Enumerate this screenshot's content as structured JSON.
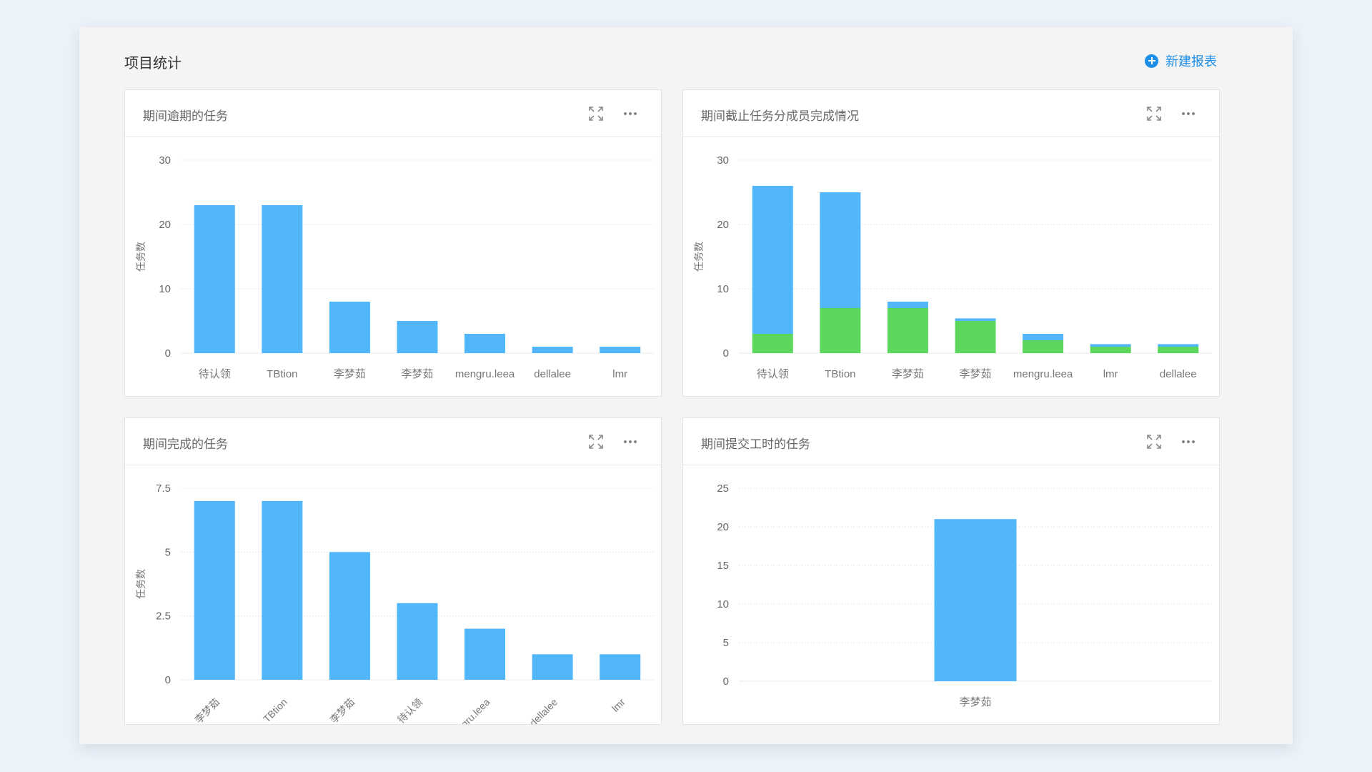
{
  "page": {
    "title": "项目统计",
    "new_report_label": "新建报表"
  },
  "cards": [
    {
      "title": "期间逾期的任务"
    },
    {
      "title": "期间截止任务分成员完成情况"
    },
    {
      "title": "期间完成的任务"
    },
    {
      "title": "期间提交工时的任务"
    }
  ],
  "colors": {
    "bar_blue": "#52b6fa",
    "bar_green": "#5cd65c",
    "accent": "#1b8ee8"
  },
  "chart_data": [
    {
      "type": "bar",
      "title": "期间逾期的任务",
      "ylabel": "任务数",
      "xlabel": "",
      "categories": [
        "待认领",
        "TBtion",
        "李梦茹",
        "李梦茹",
        "mengru.leea",
        "dellalee",
        "lmr"
      ],
      "values": [
        23,
        23,
        8,
        5,
        3,
        1,
        1
      ],
      "yticks": [
        "0",
        "10",
        "20",
        "30"
      ],
      "ylim": [
        0,
        30
      ],
      "grid": true,
      "label_rotation": 0
    },
    {
      "type": "bar",
      "stacked": true,
      "title": "期间截止任务分成员完成情况",
      "ylabel": "任务数",
      "xlabel": "",
      "categories": [
        "待认领",
        "TBtion",
        "李梦茹",
        "李梦茹",
        "mengru.leea",
        "lmr",
        "dellalee"
      ],
      "series": [
        {
          "values": [
            3,
            7,
            7,
            5,
            2,
            1,
            1
          ],
          "color": "#5cd65c"
        },
        {
          "values": [
            23,
            18,
            1,
            0.4,
            1,
            0.4,
            0.4
          ],
          "color": "#52b6fa"
        }
      ],
      "yticks": [
        "0",
        "10",
        "20",
        "30"
      ],
      "ylim": [
        0,
        30
      ],
      "grid": true,
      "label_rotation": 0
    },
    {
      "type": "bar",
      "title": "期间完成的任务",
      "ylabel": "任务数",
      "xlabel": "",
      "categories": [
        "李梦茹",
        "TBtion",
        "李梦茹",
        "待认领",
        "mengru.leea",
        "dellalee",
        "lmr"
      ],
      "values": [
        7,
        7,
        5,
        3,
        2,
        1,
        1
      ],
      "yticks": [
        "0",
        "2.5",
        "5",
        "7.5"
      ],
      "ylim": [
        0,
        7.5
      ],
      "grid": true,
      "label_rotation": -45
    },
    {
      "type": "bar",
      "title": "期间提交工时的任务",
      "ylabel": "",
      "xlabel": "",
      "categories": [
        "李梦茹"
      ],
      "values": [
        21
      ],
      "yticks": [
        "0",
        "5",
        "10",
        "15",
        "20",
        "25"
      ],
      "ylim": [
        0,
        25
      ],
      "grid": true,
      "label_rotation": 0
    }
  ]
}
